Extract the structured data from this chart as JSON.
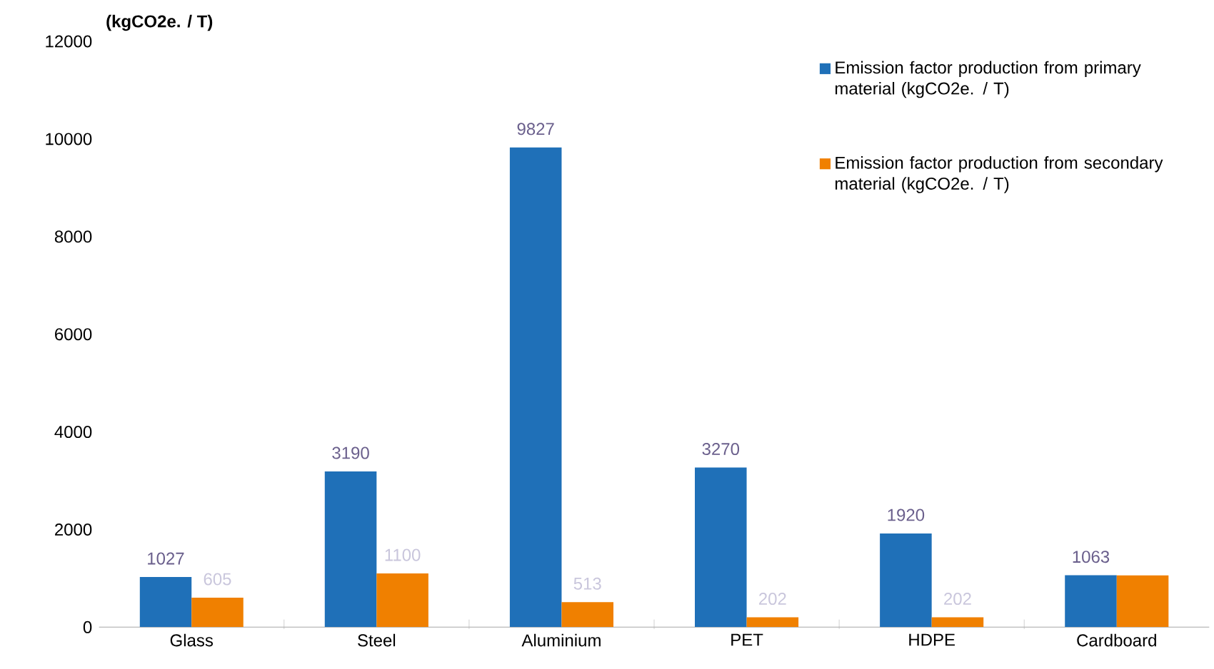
{
  "chart_data": {
    "type": "bar",
    "ylabel": "(kgCO2e. / T)",
    "categories": [
      "Glass",
      "Steel",
      "Aluminium",
      "PET",
      "HDPE",
      "Cardboard"
    ],
    "series": [
      {
        "name": "Emission factor production from primary material (kgCO2e. / T)",
        "color": "#1f70b8",
        "values": [
          1027,
          3190,
          9827,
          3270,
          1920,
          1063
        ],
        "value_labels": [
          "1027",
          "3190",
          "9827",
          "3270",
          "1920",
          "1063"
        ]
      },
      {
        "name": "Emission factor production from secondary material (kgCO2e. / T)",
        "color": "#f08000",
        "values": [
          605,
          1100,
          513,
          202,
          202,
          1060
        ],
        "value_labels": [
          "605",
          "1100",
          "513",
          "202",
          "202",
          null
        ]
      }
    ],
    "ylim": [
      0,
      12000
    ],
    "yticks": [
      0,
      2000,
      4000,
      6000,
      8000,
      10000,
      12000
    ],
    "grid": false,
    "legend": "top right"
  }
}
